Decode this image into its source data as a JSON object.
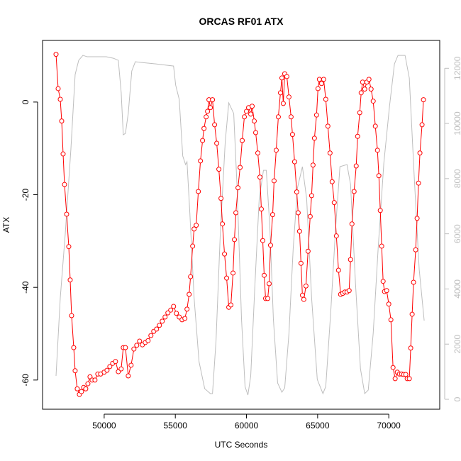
{
  "chart_data": {
    "type": "line",
    "title": "ORCAS RF01 ATX",
    "x_label": "UTC Seconds",
    "y_label": "ATX",
    "xlim": [
      45670,
      73580
    ],
    "xticks": [
      50000,
      55000,
      60000,
      65000,
      70000
    ],
    "ylim": [
      -66.3,
      13.3
    ],
    "yticks": [
      -60,
      -40,
      -20,
      0
    ],
    "y2lim": [
      -360,
      13010
    ],
    "y2ticks": [
      0,
      2000,
      4000,
      6000,
      8000,
      10000,
      12000
    ],
    "series": [
      {
        "color": "#ff0000",
        "marker": "circle",
        "x": [
          46617,
          46766,
          46915,
          47015,
          47114,
          47214,
          47363,
          47512,
          47612,
          47711,
          47861,
          47960,
          48109,
          48259,
          48408,
          48557,
          48706,
          48856,
          49005,
          49154,
          49353,
          49552,
          49751,
          50000,
          50199,
          50398,
          50597,
          50796,
          50995,
          51194,
          51343,
          51493,
          51692,
          51891,
          52090,
          52289,
          52488,
          52687,
          52886,
          53085,
          53284,
          53483,
          53682,
          53881,
          54080,
          54279,
          54478,
          54677,
          54876,
          55075,
          55274,
          55473,
          55672,
          55821,
          55971,
          56070,
          56219,
          56319,
          56468,
          56617,
          56766,
          56915,
          57015,
          57164,
          57264,
          57363,
          57463,
          57612,
          57761,
          57910,
          58060,
          58209,
          58308,
          58458,
          58607,
          58756,
          58905,
          59055,
          59154,
          59254,
          59403,
          59552,
          59701,
          59851,
          60000,
          60149,
          60299,
          60398,
          60547,
          60647,
          60796,
          60945,
          61045,
          61144,
          61244,
          61343,
          61493,
          61592,
          61692,
          61841,
          61940,
          62090,
          62239,
          62388,
          62488,
          62587,
          62687,
          62836,
          62985,
          63134,
          63234,
          63383,
          63532,
          63632,
          63731,
          63831,
          63930,
          64030,
          64179,
          64328,
          64478,
          64577,
          64677,
          64776,
          64925,
          65025,
          65124,
          65274,
          65423,
          65572,
          65721,
          65871,
          66020,
          66169,
          66318,
          66468,
          66617,
          66766,
          66915,
          67065,
          67214,
          67313,
          67413,
          67562,
          67711,
          67811,
          67960,
          68060,
          68159,
          68308,
          68458,
          68607,
          68756,
          68905,
          69055,
          69204,
          69303,
          69403,
          69502,
          69602,
          69701,
          69851,
          70000,
          70149,
          70299,
          70448,
          70597,
          70746,
          70896,
          71045,
          71194,
          71294,
          71443,
          71542,
          71642,
          71741,
          71891,
          71990,
          72090,
          72189,
          72338,
          72438
        ],
        "values": [
          10.3,
          2.9,
          0.6,
          -4.1,
          -11.2,
          -17.8,
          -24.2,
          -31.2,
          -38.4,
          -46.1,
          -53,
          -58,
          -61.9,
          -63.1,
          -62.5,
          -61.6,
          -61.9,
          -60.8,
          -59.3,
          -60,
          -60,
          -58.7,
          -58.7,
          -58.3,
          -57.9,
          -57.1,
          -56.4,
          -56,
          -58.2,
          -57.6,
          -53,
          -53,
          -59.1,
          -56.8,
          -53.3,
          -52.5,
          -51.6,
          -52.4,
          -51.9,
          -51.5,
          -50.4,
          -49.5,
          -49,
          -48.2,
          -47.3,
          -46.4,
          -45.5,
          -44.9,
          -44.1,
          -45.6,
          -46.4,
          -47,
          -46.7,
          -44.7,
          -41.5,
          -37.7,
          -31.1,
          -27.4,
          -26.6,
          -19.3,
          -12.7,
          -8.3,
          -5.7,
          -3.2,
          -2,
          0.5,
          -1.2,
          0.5,
          -4.9,
          -8.9,
          -14.5,
          -20.8,
          -26.3,
          -32.8,
          -38,
          -44.3,
          -43.8,
          -36.9,
          -29.7,
          -23.9,
          -18.5,
          -14.1,
          -8.3,
          -3.2,
          -2,
          -1.2,
          -2.6,
          -0.9,
          -4.1,
          -6.6,
          -11,
          -16.2,
          -23.1,
          -29.9,
          -37.4,
          -42.4,
          -42.4,
          -39.2,
          -30.9,
          -24.3,
          -17,
          -10.4,
          -3.2,
          2,
          5.2,
          -0.3,
          6.1,
          5.5,
          1.1,
          -3.2,
          -7,
          -12.9,
          -19.4,
          -23.9,
          -27.9,
          -34.8,
          -41.7,
          -42.6,
          -39.7,
          -32.2,
          -24.7,
          -20.2,
          -13.6,
          -7.8,
          -2.8,
          2.9,
          4.9,
          4,
          4.9,
          0.6,
          -5.2,
          -11,
          -17.2,
          -21.7,
          -28.9,
          -36.3,
          -41.5,
          -41.3,
          -41,
          -41,
          -40.7,
          -34,
          -26.3,
          -19.3,
          -13.8,
          -7.4,
          -2.3,
          2,
          4.3,
          2.8,
          4.3,
          4.9,
          2.8,
          0.2,
          -5.2,
          -10.4,
          -15.9,
          -23.4,
          -31.1,
          -38.7,
          -40.9,
          -40.7,
          -43.6,
          -47,
          -57.3,
          -59.7,
          -58.3,
          -58.7,
          -58.7,
          -58.8,
          -58.8,
          -59.7,
          -59.7,
          -53.1,
          -45.8,
          -38.9,
          -31.9,
          -25.1,
          -17.5,
          -11,
          -4.9,
          0.5
        ]
      },
      {
        "color": "#bebebe",
        "axis": "y2",
        "x": [
          46617,
          46915,
          47264,
          47662,
          47960,
          48209,
          48507,
          48806,
          49154,
          49652,
          50149,
          50647,
          50995,
          51194,
          51343,
          51493,
          51692,
          51940,
          52189,
          52637,
          53632,
          54876,
          55025,
          55274,
          55522,
          55721,
          55821,
          56020,
          56319,
          56667,
          57065,
          57463,
          57612,
          57861,
          58159,
          58507,
          58756,
          59104,
          59353,
          59652,
          59900,
          60100,
          60299,
          60597,
          60896,
          61194,
          61393,
          61642,
          61891,
          62189,
          62488,
          62687,
          62985,
          63284,
          63582,
          63930,
          64229,
          64577,
          64975,
          65373,
          65572,
          65920,
          66269,
          66567,
          67065,
          67313,
          67662,
          68010,
          68308,
          68557,
          68905,
          69254,
          69652,
          70050,
          70398,
          70647,
          71144,
          71443,
          71791,
          72139,
          72488
        ],
        "values": [
          848,
          3676,
          5990,
          9075,
          11774,
          12288,
          12468,
          12417,
          12417,
          12417,
          12417,
          12365,
          12288,
          11131,
          9589,
          9640,
          10360,
          11902,
          12237,
          12211,
          12159,
          12082,
          11388,
          10874,
          8817,
          8509,
          8612,
          6761,
          3676,
          1362,
          386,
          206,
          206,
          2134,
          5990,
          9332,
          10746,
          10360,
          7532,
          2905,
          463,
          154,
          848,
          4190,
          7275,
          8303,
          8303,
          6247,
          2905,
          591,
          257,
          411,
          2391,
          5476,
          7661,
          8432,
          7275,
          3676,
          720,
          206,
          463,
          3162,
          6247,
          8432,
          8509,
          7789,
          4190,
          1105,
          206,
          334,
          2391,
          5476,
          8560,
          10617,
          12159,
          12468,
          12468,
          11645,
          8046,
          4704,
          2853
        ]
      }
    ]
  }
}
